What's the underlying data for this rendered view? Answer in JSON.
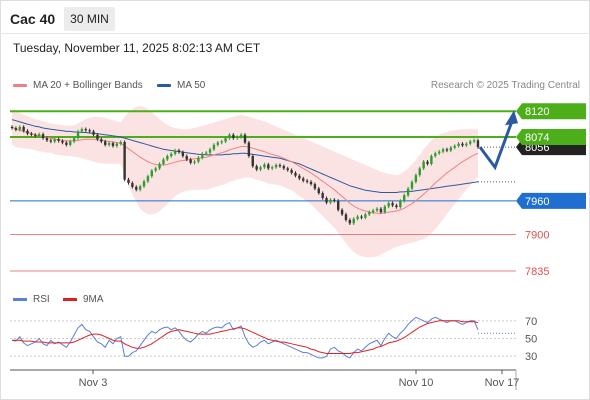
{
  "header": {
    "title": "Cac 40",
    "timeframe": "30 MIN",
    "datetime": "Tuesday, November 11, 2025 8:02:13 AM CET"
  },
  "legend": {
    "ma20_label": "MA 20 + Bollinger Bands",
    "ma50_label": "MA 50",
    "ma20_color": "#f08080",
    "ma50_color": "#2c5aa0",
    "source": "Research © 2025 Trading Central"
  },
  "rsi_legend": {
    "rsi_label": "RSI",
    "ma_label": "9MA",
    "rsi_color": "#5b7fd4",
    "ma_color": "#e02020"
  },
  "colors": {
    "resistance": "#4caf1a",
    "pivot": "#1e6fd0",
    "support": "#e05050",
    "candle_up": "#2e9c2e",
    "candle_down": "#333333",
    "band_fill": "#fadcdc",
    "last_price_tag": "#222222"
  },
  "chart_data": [
    {
      "type": "candlestick",
      "x_ticks": [
        "Nov 3",
        "Nov 10",
        "Nov 17"
      ],
      "ylim": [
        7810,
        8140
      ],
      "levels": [
        {
          "value": 8120,
          "label": "8120",
          "kind": "resistance"
        },
        {
          "value": 8074,
          "label": "8074",
          "kind": "resistance"
        },
        {
          "value": 7960,
          "label": "7960",
          "kind": "pivot"
        },
        {
          "value": 7900,
          "label": "7900",
          "kind": "support"
        },
        {
          "value": 7835,
          "label": "7835",
          "kind": "support"
        }
      ],
      "last_price": {
        "value": 8056,
        "label": "8056"
      },
      "scenario_arrow": {
        "from": 8056,
        "low": 8020,
        "to": 8120
      },
      "close": [
        8090,
        8087,
        8092,
        8085,
        8080,
        8078,
        8076,
        8079,
        8072,
        8068,
        8066,
        8070,
        8067,
        8064,
        8060,
        8066,
        8072,
        8084,
        8088,
        8086,
        8084,
        8078,
        8070,
        8066,
        8060,
        8063,
        8058,
        8062,
        8065,
        7998,
        7992,
        7985,
        7980,
        7986,
        7995,
        8004,
        8014,
        8018,
        8026,
        8034,
        8040,
        8044,
        8050,
        8047,
        8040,
        8034,
        8028,
        8030,
        8037,
        8044,
        8046,
        8052,
        8060,
        8064,
        8066,
        8072,
        8078,
        8072,
        8074,
        8078,
        8064,
        8040,
        8022,
        8016,
        8020,
        8025,
        8018,
        8020,
        8024,
        8022,
        8018,
        8015,
        8010,
        8005,
        8000,
        7996,
        7994,
        7990,
        7982,
        7974,
        7965,
        7957,
        7962,
        7960,
        7944,
        7936,
        7926,
        7920,
        7928,
        7932,
        7930,
        7936,
        7940,
        7943,
        7946,
        7940,
        7950,
        7956,
        7952,
        7949,
        7960,
        7970,
        7982,
        7994,
        8006,
        8018,
        8030,
        8026,
        8040,
        8045,
        8048,
        8052,
        8050,
        8055,
        8058,
        8062,
        8059,
        8062,
        8066,
        8068,
        8056
      ],
      "ma20": [
        8092,
        8088,
        8086,
        8084,
        8082,
        8080,
        8078,
        8076,
        8075,
        8073,
        8072,
        8070,
        8069,
        8068,
        8067,
        8067,
        8067,
        8068,
        8069,
        8070,
        8070,
        8070,
        8069,
        8068,
        8067,
        8066,
        8065,
        8064,
        8063,
        8058,
        8053,
        8048,
        8043,
        8038,
        8034,
        8030,
        8027,
        8025,
        8024,
        8024,
        8025,
        8027,
        8029,
        8031,
        8032,
        8033,
        8034,
        8035,
        8036,
        8037,
        8038,
        8040,
        8042,
        8044,
        8046,
        8048,
        8051,
        8053,
        8055,
        8057,
        8057,
        8056,
        8054,
        8052,
        8050,
        8048,
        8045,
        8043,
        8041,
        8039,
        8036,
        8033,
        8030,
        8026,
        8022,
        8018,
        8014,
        8010,
        8005,
        8000,
        7995,
        7990,
        7985,
        7980,
        7974,
        7968,
        7962,
        7956,
        7951,
        7947,
        7944,
        7942,
        7940,
        7939,
        7938,
        7938,
        7939,
        7940,
        7941,
        7942,
        7944,
        7947,
        7951,
        7955,
        7960,
        7966,
        7972,
        7978,
        7985,
        7992,
        7998,
        8004,
        8010,
        8015,
        8020,
        8025,
        8030,
        8034,
        8038,
        8042,
        8045
      ],
      "ma50": [
        8105,
        8103,
        8101,
        8099,
        8097,
        8095,
        8093,
        8092,
        8090,
        8089,
        8088,
        8087,
        8086,
        8085,
        8084,
        8084,
        8083,
        8083,
        8082,
        8082,
        8081,
        8081,
        8080,
        8079,
        8078,
        8077,
        8076,
        8075,
        8074,
        8072,
        8070,
        8068,
        8066,
        8064,
        8062,
        8060,
        8058,
        8056,
        8054,
        8052,
        8051,
        8050,
        8049,
        8048,
        8047,
        8046,
        8045,
        8044,
        8043,
        8043,
        8042,
        8042,
        8042,
        8042,
        8042,
        8043,
        8043,
        8044,
        8044,
        8045,
        8045,
        8044,
        8043,
        8042,
        8041,
        8040,
        8039,
        8038,
        8037,
        8036,
        8034,
        8032,
        8030,
        8028,
        8026,
        8023,
        8020,
        8017,
        8014,
        8011,
        8008,
        8005,
        8002,
        7999,
        7996,
        7993,
        7990,
        7987,
        7985,
        7983,
        7981,
        7979,
        7978,
        7977,
        7976,
        7975,
        7975,
        7975,
        7975,
        7975,
        7976,
        7976,
        7977,
        7977,
        7978,
        7979,
        7980,
        7981,
        7982,
        7983,
        7984,
        7985,
        7986,
        7987,
        7988,
        7989,
        7990,
        7991,
        7992,
        7993,
        7994
      ],
      "band_upper": [
        8124,
        8120,
        8117,
        8114,
        8111,
        8108,
        8106,
        8104,
        8102,
        8100,
        8098,
        8097,
        8096,
        8095,
        8094,
        8094,
        8095,
        8098,
        8102,
        8106,
        8108,
        8110,
        8110,
        8109,
        8108,
        8106,
        8104,
        8102,
        8100,
        8110,
        8118,
        8124,
        8128,
        8130,
        8128,
        8124,
        8118,
        8112,
        8106,
        8100,
        8096,
        8092,
        8090,
        8089,
        8088,
        8088,
        8089,
        8090,
        8092,
        8094,
        8096,
        8098,
        8100,
        8102,
        8104,
        8106,
        8108,
        8110,
        8112,
        8114,
        8112,
        8110,
        8108,
        8106,
        8104,
        8102,
        8099,
        8096,
        8093,
        8090,
        8087,
        8084,
        8081,
        8078,
        8075,
        8072,
        8069,
        8066,
        8063,
        8060,
        8057,
        8054,
        8051,
        8048,
        8045,
        8042,
        8039,
        8036,
        8033,
        8030,
        8027,
        8024,
        8021,
        8018,
        8015,
        8012,
        8010,
        8008,
        8007,
        8006,
        8008,
        8012,
        8018,
        8025,
        8033,
        8042,
        8052,
        8060,
        8068,
        8074,
        8078,
        8081,
        8083,
        8085,
        8086,
        8087,
        8088,
        8088,
        8088,
        8088,
        8088
      ],
      "band_lower": [
        8060,
        8056,
        8055,
        8054,
        8053,
        8052,
        8050,
        8048,
        8048,
        8046,
        8046,
        8043,
        8042,
        8041,
        8040,
        8040,
        8039,
        8038,
        8036,
        8034,
        8032,
        8030,
        8028,
        8027,
        8026,
        8026,
        8026,
        8026,
        8026,
        8006,
        7988,
        7972,
        7958,
        7946,
        7940,
        7936,
        7936,
        7938,
        7942,
        7948,
        7954,
        7962,
        7968,
        7973,
        7976,
        7978,
        7979,
        7980,
        7980,
        7980,
        7980,
        7982,
        7984,
        7986,
        7988,
        7990,
        7994,
        7996,
        7998,
        8000,
        8002,
        8002,
        8000,
        7998,
        7996,
        7994,
        7991,
        7990,
        7989,
        7988,
        7985,
        7982,
        7979,
        7974,
        7969,
        7964,
        7959,
        7954,
        7947,
        7940,
        7933,
        7926,
        7919,
        7912,
        7903,
        7894,
        7885,
        7876,
        7869,
        7864,
        7861,
        7860,
        7859,
        7860,
        7861,
        7864,
        7868,
        7872,
        7875,
        7878,
        7880,
        7882,
        7884,
        7885,
        7887,
        7890,
        7892,
        7896,
        7902,
        7910,
        7918,
        7927,
        7937,
        7945,
        7954,
        7963,
        7972,
        7980,
        7988,
        7996,
        8002
      ]
    },
    {
      "type": "line",
      "name": "RSI",
      "yticks": [
        70,
        50,
        30
      ],
      "ylim": [
        20,
        80
      ],
      "reference_level": 56,
      "rsi": [
        48,
        47,
        52,
        45,
        42,
        44,
        46,
        50,
        44,
        42,
        48,
        44,
        46,
        43,
        40,
        46,
        54,
        62,
        66,
        60,
        58,
        52,
        46,
        44,
        40,
        48,
        44,
        50,
        52,
        30,
        30,
        34,
        36,
        42,
        48,
        54,
        58,
        56,
        60,
        62,
        63,
        60,
        62,
        58,
        52,
        48,
        46,
        50,
        55,
        58,
        56,
        60,
        62,
        63,
        62,
        66,
        68,
        60,
        62,
        64,
        52,
        44,
        40,
        42,
        46,
        48,
        44,
        46,
        48,
        46,
        44,
        42,
        40,
        38,
        36,
        34,
        34,
        32,
        30,
        28,
        28,
        30,
        38,
        40,
        36,
        34,
        30,
        28,
        34,
        38,
        36,
        40,
        44,
        46,
        48,
        42,
        50,
        56,
        52,
        50,
        56,
        60,
        66,
        70,
        74,
        72,
        70,
        68,
        72,
        74,
        72,
        70,
        68,
        70,
        70,
        68,
        66,
        68,
        70,
        70,
        60
      ],
      "rsi_ma": [
        48,
        48,
        48,
        47,
        47,
        47,
        46,
        46,
        46,
        45,
        45,
        45,
        45,
        45,
        45,
        45,
        46,
        48,
        50,
        52,
        54,
        55,
        55,
        54,
        52,
        50,
        48,
        47,
        47,
        44,
        42,
        40,
        39,
        39,
        40,
        42,
        44,
        47,
        50,
        53,
        56,
        58,
        59,
        60,
        59,
        58,
        57,
        56,
        55,
        55,
        55,
        55,
        56,
        57,
        58,
        59,
        60,
        61,
        62,
        62,
        61,
        59,
        57,
        55,
        53,
        51,
        49,
        48,
        47,
        46,
        46,
        45,
        44,
        43,
        42,
        41,
        40,
        38,
        37,
        35,
        34,
        33,
        33,
        33,
        33,
        33,
        33,
        33,
        34,
        34,
        35,
        36,
        37,
        38,
        40,
        41,
        43,
        45,
        46,
        47,
        49,
        51,
        54,
        57,
        60,
        63,
        65,
        67,
        68,
        69,
        70,
        70,
        70,
        70,
        70,
        70,
        69,
        69,
        69,
        69,
        68
      ]
    }
  ]
}
